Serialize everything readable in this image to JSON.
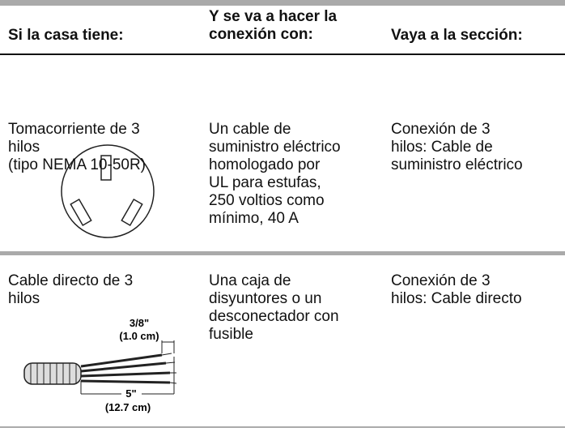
{
  "table": {
    "header": [
      [
        "Si la casa tiene:"
      ],
      [
        "Y se va a hacer la",
        "conexión con:"
      ],
      [
        "Vaya a la sección:"
      ]
    ],
    "rows": [
      [
        [
          "Tomacorriente de 3",
          "hilos",
          "(tipo NEMA 10-50R)"
        ],
        [
          "Un cable de",
          "suministro eléctrico",
          "homologado por",
          "UL para estufas,",
          "250 voltios como",
          "mínimo, 40 A"
        ],
        [
          "Conexión de 3",
          "hilos: Cable de",
          "suministro eléctrico"
        ]
      ],
      [
        [
          "Cable directo de 3",
          "hilos"
        ],
        [
          "Una caja de",
          "disyuntores o un",
          "desconectador con",
          "fusible"
        ],
        [
          "Conexión de 3",
          "hilos: Cable directo"
        ]
      ]
    ],
    "cable_figure": {
      "strip_length": "3/8\"",
      "strip_length_metric": "(1.0 cm)",
      "total_length": "5\"",
      "total_length_metric": "(12.7 cm)"
    }
  }
}
